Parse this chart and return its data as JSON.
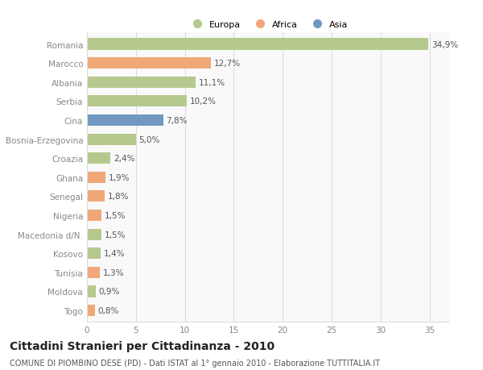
{
  "categories": [
    "Romania",
    "Marocco",
    "Albania",
    "Serbia",
    "Cina",
    "Bosnia-Erzegovina",
    "Croazia",
    "Ghana",
    "Senegal",
    "Nigeria",
    "Macedonia d/N.",
    "Kosovo",
    "Tunisia",
    "Moldova",
    "Togo"
  ],
  "values": [
    34.9,
    12.7,
    11.1,
    10.2,
    7.8,
    5.0,
    2.4,
    1.9,
    1.8,
    1.5,
    1.5,
    1.4,
    1.3,
    0.9,
    0.8
  ],
  "labels": [
    "34,9%",
    "12,7%",
    "11,1%",
    "10,2%",
    "7,8%",
    "5,0%",
    "2,4%",
    "1,9%",
    "1,8%",
    "1,5%",
    "1,5%",
    "1,4%",
    "1,3%",
    "0,9%",
    "0,8%"
  ],
  "colors": [
    "#b5c98e",
    "#f0a878",
    "#b5c98e",
    "#b5c98e",
    "#7098c0",
    "#b5c98e",
    "#b5c98e",
    "#f0a878",
    "#f0a878",
    "#f0a878",
    "#b5c98e",
    "#b5c98e",
    "#f0a878",
    "#b5c98e",
    "#f0a878"
  ],
  "legend_labels": [
    "Europa",
    "Africa",
    "Asia"
  ],
  "legend_colors": [
    "#b5c98e",
    "#f0a878",
    "#7098c0"
  ],
  "title": "Cittadini Stranieri per Cittadinanza - 2010",
  "subtitle": "COMUNE DI PIOMBINO DESE (PD) - Dati ISTAT al 1° gennaio 2010 - Elaborazione TUTTITALIA.IT",
  "xlim": [
    0,
    37
  ],
  "xticks": [
    0,
    5,
    10,
    15,
    20,
    25,
    30,
    35
  ],
  "background_color": "#ffffff",
  "plot_bg_color": "#f9f9f9",
  "grid_color": "#dddddd",
  "bar_height": 0.6,
  "label_fontsize": 7.5,
  "tick_fontsize": 7.5,
  "title_fontsize": 10,
  "subtitle_fontsize": 7
}
